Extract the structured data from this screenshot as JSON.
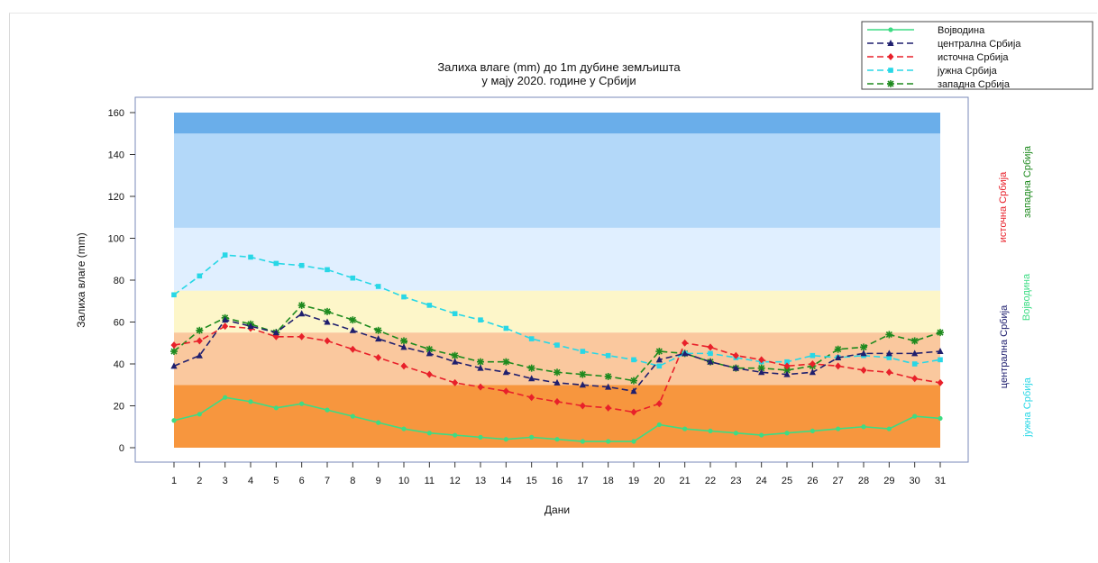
{
  "chart_data": {
    "type": "line",
    "title_line1": "Залиха влаге (mm) до 1m дубине земљишта",
    "title_line2": "у мају 2020. године у Србији",
    "xlabel": "Дани",
    "ylabel": "Залиха влаге (mm)",
    "ylim": [
      0,
      160
    ],
    "yticks": [
      0,
      20,
      40,
      60,
      80,
      100,
      120,
      140,
      160
    ],
    "x": [
      1,
      2,
      3,
      4,
      5,
      6,
      7,
      8,
      9,
      10,
      11,
      12,
      13,
      14,
      15,
      16,
      17,
      18,
      19,
      20,
      21,
      22,
      23,
      24,
      25,
      26,
      27,
      28,
      29,
      30,
      31
    ],
    "bands": [
      {
        "from": 0,
        "to": 30,
        "color": "#f7963e"
      },
      {
        "from": 30,
        "to": 55,
        "color": "#fac89e"
      },
      {
        "from": 55,
        "to": 75,
        "color": "#fdf6c9"
      },
      {
        "from": 75,
        "to": 105,
        "color": "#e0efff"
      },
      {
        "from": 105,
        "to": 150,
        "color": "#b3d8f9"
      },
      {
        "from": 150,
        "to": 160,
        "color": "#6aaeea"
      }
    ],
    "series": [
      {
        "name": "Војводина",
        "color": "#3ddc84",
        "dash": "solid",
        "marker": "dot",
        "values": [
          13,
          16,
          24,
          22,
          19,
          21,
          18,
          15,
          12,
          9,
          7,
          6,
          5,
          4,
          5,
          4,
          3,
          3,
          3,
          11,
          9,
          8,
          7,
          6,
          7,
          8,
          9,
          10,
          9,
          15,
          14
        ]
      },
      {
        "name": "централна Србија",
        "color": "#1f1f6e",
        "dash": "dashed",
        "marker": "triangle",
        "values": [
          39,
          44,
          61,
          58,
          55,
          64,
          60,
          56,
          52,
          48,
          45,
          41,
          38,
          36,
          33,
          31,
          30,
          29,
          27,
          42,
          45,
          41,
          38,
          36,
          35,
          36,
          43,
          45,
          45,
          45,
          46
        ]
      },
      {
        "name": "источна Србија",
        "color": "#e8202a",
        "dash": "dashed",
        "marker": "diamond",
        "values": [
          49,
          51,
          58,
          57,
          53,
          53,
          51,
          47,
          43,
          39,
          35,
          31,
          29,
          27,
          24,
          22,
          20,
          19,
          17,
          21,
          50,
          48,
          44,
          42,
          39,
          40,
          39,
          37,
          36,
          33,
          31
        ]
      },
      {
        "name": "јужна Србија",
        "color": "#28d7e6",
        "dash": "dashed",
        "marker": "square",
        "values": [
          73,
          82,
          92,
          91,
          88,
          87,
          85,
          81,
          77,
          72,
          68,
          64,
          61,
          57,
          52,
          49,
          46,
          44,
          42,
          39,
          45,
          45,
          43,
          41,
          41,
          44,
          43,
          44,
          43,
          40,
          42
        ]
      },
      {
        "name": "западна Србија",
        "color": "#1e8a1e",
        "dash": "dashed",
        "marker": "star",
        "values": [
          46,
          56,
          62,
          59,
          55,
          68,
          65,
          61,
          56,
          51,
          47,
          44,
          41,
          41,
          38,
          36,
          35,
          34,
          32,
          46,
          45,
          41,
          38,
          38,
          37,
          39,
          47,
          48,
          54,
          51,
          55
        ]
      }
    ],
    "legend_position": "top-right",
    "side_labels": [
      {
        "text": "источна Србија",
        "color": "#e8202a"
      },
      {
        "text": "западна Србија",
        "color": "#1e8a1e"
      },
      {
        "text": "централна Србија",
        "color": "#1f1f6e"
      },
      {
        "text": "Војводина",
        "color": "#3ddc84"
      },
      {
        "text": "јужна Србија",
        "color": "#28d7e6"
      }
    ]
  }
}
